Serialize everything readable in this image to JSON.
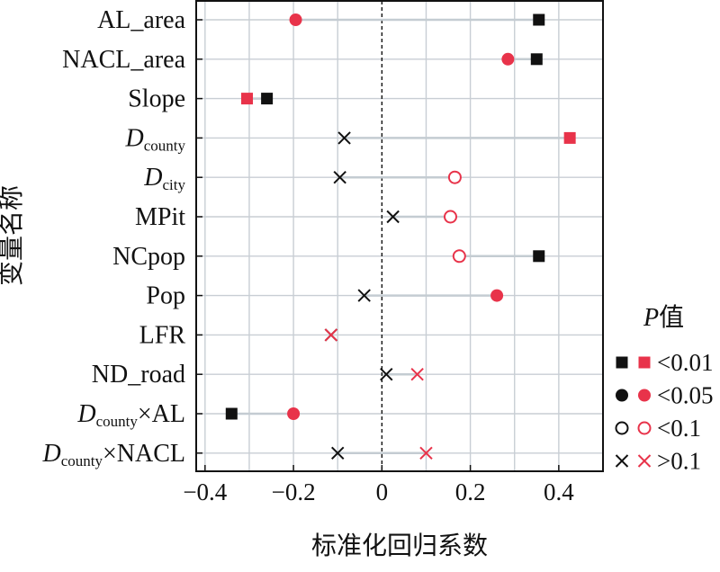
{
  "chart_data": {
    "type": "scatter",
    "subtype": "dot-plot",
    "xlabel": "标准化回归系数",
    "ylabel": "变量名称",
    "xlim": [
      -0.42,
      0.5
    ],
    "xticks": [
      -0.4,
      -0.2,
      0,
      0.2,
      0.4
    ],
    "xtick_labels": [
      "−0.4",
      "−0.2",
      "0",
      "0.2",
      "0.4"
    ],
    "grid": true,
    "zero_line": "dashed",
    "colors": {
      "black": "#111111",
      "red": "#e8334a",
      "connector": "#c4ccd2",
      "grid": "#c8ced4"
    },
    "categories": [
      {
        "main": "AL_area",
        "sub": "",
        "suffix": ""
      },
      {
        "main": "NACL_area",
        "sub": "",
        "suffix": ""
      },
      {
        "main": "Slope",
        "sub": "",
        "suffix": ""
      },
      {
        "main": "D",
        "sub": "county",
        "suffix": ""
      },
      {
        "main": "D",
        "sub": "city",
        "suffix": ""
      },
      {
        "main": "MPit",
        "sub": "",
        "suffix": ""
      },
      {
        "main": "NCpop",
        "sub": "",
        "suffix": ""
      },
      {
        "main": "Pop",
        "sub": "",
        "suffix": ""
      },
      {
        "main": "LFR",
        "sub": "",
        "suffix": ""
      },
      {
        "main": "ND_road",
        "sub": "",
        "suffix": ""
      },
      {
        "main": "D",
        "sub": "county",
        "suffix": "×AL"
      },
      {
        "main": "D",
        "sub": "county",
        "suffix": "×NACL"
      }
    ],
    "series": [
      {
        "color": "black",
        "points": [
          {
            "x": 0.355,
            "sig": "p<0.01"
          },
          {
            "x": 0.35,
            "sig": "p<0.01"
          },
          {
            "x": -0.26,
            "sig": "p<0.01"
          },
          {
            "x": -0.085,
            "sig": "p>0.1"
          },
          {
            "x": -0.095,
            "sig": "p>0.1"
          },
          {
            "x": 0.025,
            "sig": "p>0.1"
          },
          {
            "x": 0.355,
            "sig": "p<0.01"
          },
          {
            "x": -0.04,
            "sig": "p>0.1"
          },
          {
            "x": -0.115,
            "sig": "p>0.1"
          },
          {
            "x": 0.01,
            "sig": "p>0.1"
          },
          {
            "x": -0.34,
            "sig": "p<0.01"
          },
          {
            "x": -0.1,
            "sig": "p>0.1"
          }
        ]
      },
      {
        "color": "red",
        "points": [
          {
            "x": -0.195,
            "sig": "p<0.05"
          },
          {
            "x": 0.285,
            "sig": "p<0.05"
          },
          {
            "x": -0.305,
            "sig": "p<0.01"
          },
          {
            "x": 0.425,
            "sig": "p<0.01"
          },
          {
            "x": 0.165,
            "sig": "p<0.1"
          },
          {
            "x": 0.155,
            "sig": "p<0.1"
          },
          {
            "x": 0.175,
            "sig": "p<0.1"
          },
          {
            "x": 0.26,
            "sig": "p<0.05"
          },
          {
            "x": -0.115,
            "sig": "p>0.1"
          },
          {
            "x": 0.08,
            "sig": "p>0.1"
          },
          {
            "x": -0.2,
            "sig": "p<0.05"
          },
          {
            "x": 0.1,
            "sig": "p>0.1"
          }
        ]
      }
    ],
    "legend": {
      "title_italic": "P",
      "title_rest": "值",
      "placement": "right",
      "entries": [
        {
          "sig": "p<0.01",
          "label": "<0.01"
        },
        {
          "sig": "p<0.05",
          "label": "<0.05"
        },
        {
          "sig": "p<0.1",
          "label": "<0.1"
        },
        {
          "sig": "p>0.1",
          "label": ">0.1"
        }
      ]
    }
  }
}
